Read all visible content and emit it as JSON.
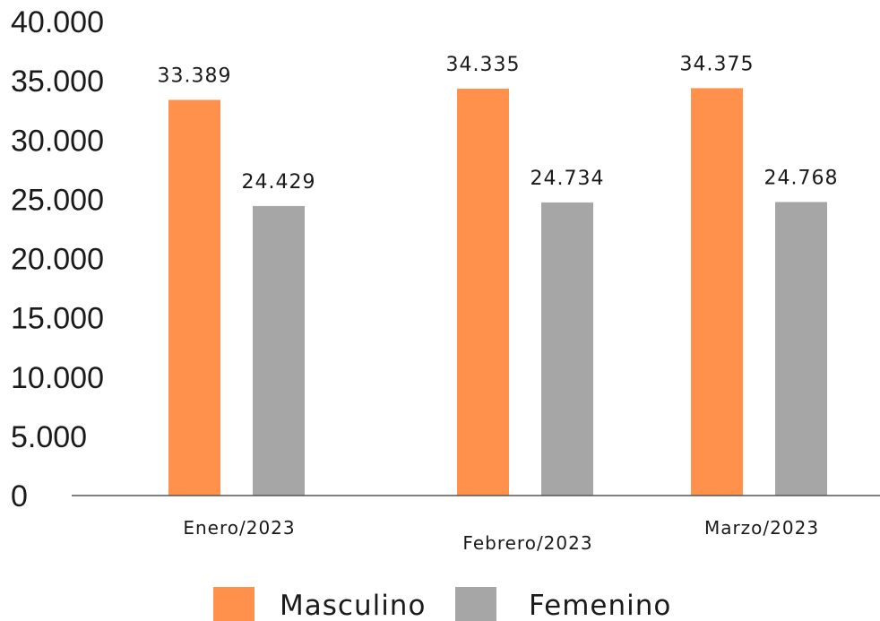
{
  "chart_data": {
    "type": "bar",
    "title": "",
    "xlabel": "",
    "ylabel": "",
    "categories": [
      "Enero/2023",
      "Febrero/2023",
      "Marzo/2023"
    ],
    "series": [
      {
        "name": "Masculino",
        "color": "#FF914D",
        "values": [
          33389,
          34335,
          34375
        ],
        "labels": [
          "33.389",
          "34.335",
          "34.375"
        ]
      },
      {
        "name": "Femenino",
        "color": "#A6A6A6",
        "values": [
          24429,
          24734,
          24768
        ],
        "labels": [
          "24.429",
          "24.734",
          "24.768"
        ]
      }
    ],
    "yticks": [
      0,
      5000,
      10000,
      15000,
      20000,
      25000,
      30000,
      35000,
      40000
    ],
    "ytick_labels": [
      "0",
      "5.000",
      "10.000",
      "15.000",
      "20.000",
      "25.000",
      "30.000",
      "35.000",
      "40.000"
    ],
    "ylim": [
      0,
      40000
    ],
    "grid": false,
    "legend": "bottom"
  }
}
